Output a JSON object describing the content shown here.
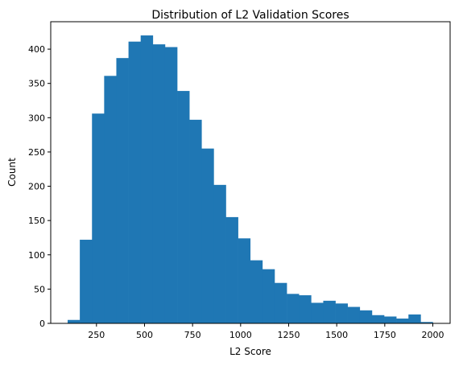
{
  "chart_data": {
    "type": "bar",
    "title": "Distribution of L2 Validation Scores",
    "xlabel": "L2 Score",
    "ylabel": "Count",
    "bin_start": 100,
    "bin_width": 63.33,
    "values": [
      5,
      122,
      306,
      361,
      387,
      411,
      420,
      407,
      403,
      339,
      297,
      255,
      202,
      155,
      124,
      92,
      79,
      59,
      43,
      41,
      30,
      33,
      29,
      24,
      19,
      12,
      10,
      7,
      13,
      2
    ],
    "xlim": [
      12,
      2090
    ],
    "ylim": [
      0,
      440
    ],
    "xticks": [
      250,
      500,
      750,
      1000,
      1250,
      1500,
      1750,
      2000
    ],
    "yticks": [
      0,
      50,
      100,
      150,
      200,
      250,
      300,
      350,
      400
    ],
    "bar_color": "#1f77b4",
    "grid": false
  }
}
